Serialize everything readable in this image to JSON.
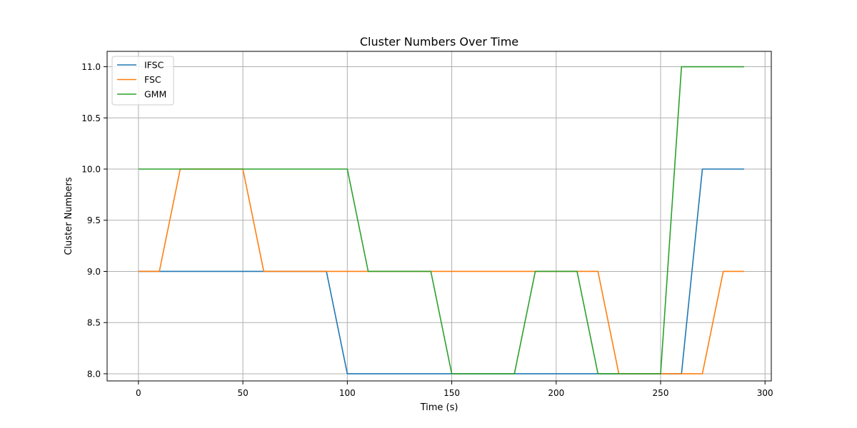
{
  "chart_data": {
    "type": "line",
    "title": "Cluster Numbers Over Time",
    "xlabel": "Time (s)",
    "ylabel": "Cluster Numbers",
    "xlim": [
      -15,
      303
    ],
    "ylim": [
      7.93,
      11.15
    ],
    "xticks": [
      0,
      50,
      100,
      150,
      200,
      250,
      300
    ],
    "xtick_labels": [
      "0",
      "50",
      "100",
      "150",
      "200",
      "250",
      "300"
    ],
    "yticks": [
      8.0,
      8.5,
      9.0,
      9.5,
      10.0,
      10.5,
      11.0
    ],
    "ytick_labels": [
      "8.0",
      "8.5",
      "9.0",
      "9.5",
      "10.0",
      "10.5",
      "11.0"
    ],
    "grid": true,
    "legend_position": "top-left",
    "x": [
      0,
      10,
      20,
      30,
      40,
      50,
      60,
      70,
      80,
      90,
      100,
      110,
      120,
      130,
      140,
      150,
      160,
      170,
      180,
      190,
      200,
      210,
      220,
      230,
      240,
      250,
      260,
      270,
      280,
      290
    ],
    "series": [
      {
        "name": "IFSC",
        "color": "#1f77b4",
        "values": [
          9,
          9,
          9,
          9,
          9,
          9,
          9,
          9,
          9,
          9,
          8,
          8,
          8,
          8,
          8,
          8,
          8,
          8,
          8,
          8,
          8,
          8,
          8,
          8,
          8,
          8,
          8,
          10,
          10,
          10
        ]
      },
      {
        "name": "FSC",
        "color": "#ff7f0e",
        "values": [
          9,
          9,
          10,
          10,
          10,
          10,
          9,
          9,
          9,
          9,
          9,
          9,
          9,
          9,
          9,
          9,
          9,
          9,
          9,
          9,
          9,
          9,
          9,
          8,
          8,
          8,
          8,
          8,
          9,
          9
        ]
      },
      {
        "name": "GMM",
        "color": "#2ca02c",
        "values": [
          10,
          10,
          10,
          10,
          10,
          10,
          10,
          10,
          10,
          10,
          10,
          9,
          9,
          9,
          9,
          8,
          8,
          8,
          8,
          9,
          9,
          9,
          8,
          8,
          8,
          8,
          11,
          11,
          11,
          11
        ]
      }
    ]
  }
}
